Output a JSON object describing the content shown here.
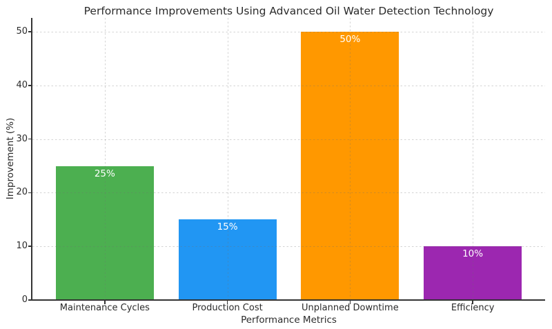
{
  "chart_data": {
    "type": "bar",
    "title": "Performance Improvements Using Advanced Oil Water Detection Technology",
    "xlabel": "Performance Metrics",
    "ylabel": "Improvement (%)",
    "categories": [
      "Maintenance Cycles",
      "Production Cost",
      "Unplanned Downtime",
      "Efficiency"
    ],
    "values": [
      25,
      15,
      50,
      10
    ],
    "bar_labels": [
      "25%",
      "15%",
      "50%",
      "10%"
    ],
    "bar_colors": [
      "#4caf50",
      "#2196f3",
      "#ff9800",
      "#9c27b0"
    ],
    "yticks": [
      0,
      10,
      20,
      30,
      40,
      50
    ],
    "ylim": [
      0,
      52.5
    ],
    "grid": true,
    "grid_style": "dashed",
    "legend_position": "none",
    "colors": {
      "background": "#ffffff",
      "spine": "#333333",
      "text": "#2b2b2b",
      "bar_label_text": "#ffffff"
    }
  }
}
